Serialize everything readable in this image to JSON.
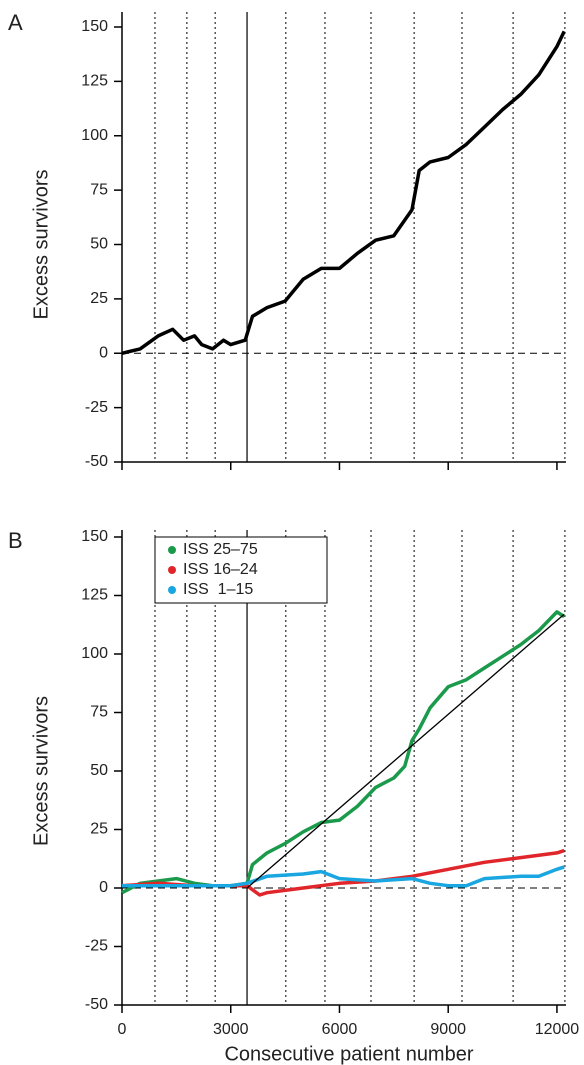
{
  "chart_data": [
    {
      "type": "line",
      "panel_label": "A",
      "ylabel": "Excess survivors",
      "xlim": [
        0,
        12250
      ],
      "ylim": [
        -50,
        150
      ],
      "xticks": [
        0,
        3000,
        6000,
        9000,
        12000
      ],
      "show_xtick_labels": false,
      "yticks": [
        150,
        125,
        100,
        75,
        50,
        25,
        0,
        -25,
        -50
      ],
      "vlines": [
        910,
        1790,
        2570,
        4520,
        5600,
        6870,
        8060,
        9380,
        10790,
        12220
      ],
      "solid_vline": 3450,
      "reference_line": 0,
      "series": [
        {
          "color": "#000000",
          "x": [
            0,
            500,
            1000,
            1400,
            1700,
            2000,
            2200,
            2500,
            2800,
            3000,
            3400,
            3600,
            4000,
            4500,
            5000,
            5500,
            6000,
            6500,
            7000,
            7500,
            8000,
            8200,
            8500,
            9000,
            9500,
            10000,
            10500,
            11000,
            11500,
            12000,
            12200
          ],
          "values": [
            0,
            2,
            8,
            11,
            6,
            8,
            4,
            2,
            6,
            4,
            6,
            17,
            21,
            24,
            34,
            39,
            39,
            46,
            52,
            54,
            66,
            84,
            88,
            90,
            96,
            104,
            112,
            119,
            128,
            141,
            148
          ]
        }
      ]
    },
    {
      "type": "line",
      "panel_label": "B",
      "ylabel": "Excess survivors",
      "xlabel": "Consecutive patient number",
      "xlim": [
        0,
        12250
      ],
      "ylim": [
        -50,
        150
      ],
      "xticks": [
        0,
        3000,
        6000,
        9000,
        12000
      ],
      "show_xtick_labels": true,
      "yticks": [
        150,
        125,
        100,
        75,
        50,
        25,
        0,
        -25,
        -50
      ],
      "vlines": [
        910,
        1790,
        2570,
        4520,
        5600,
        6870,
        8060,
        9380,
        10790,
        12220
      ],
      "solid_vline": 3450,
      "reference_line": 0,
      "fit_line": {
        "color": "#000000",
        "x": [
          3450,
          12200
        ],
        "values": [
          0,
          117
        ]
      },
      "series": [
        {
          "name": "ISS 25–75",
          "color": "#1a9a4a",
          "x": [
            0,
            500,
            1000,
            1500,
            2000,
            2500,
            3000,
            3450,
            3600,
            4000,
            4500,
            5000,
            5500,
            6000,
            6500,
            7000,
            7500,
            7800,
            8000,
            8200,
            8500,
            9000,
            9500,
            10000,
            10500,
            11000,
            11500,
            12000,
            12200
          ],
          "values": [
            -2,
            2,
            3,
            4,
            2,
            1,
            1,
            2,
            10,
            15,
            19,
            24,
            28,
            29,
            35,
            43,
            47,
            52,
            63,
            68,
            77,
            86,
            89,
            94,
            99,
            104,
            110,
            118,
            116
          ]
        },
        {
          "name": "ISS 16–24",
          "color": "#e0262a",
          "x": [
            0,
            1000,
            2000,
            3000,
            3450,
            3800,
            4000,
            5000,
            6000,
            7000,
            8000,
            9000,
            10000,
            11000,
            12000,
            12200
          ],
          "values": [
            1,
            2,
            1,
            1,
            1,
            -3,
            -2,
            0,
            2,
            3,
            5,
            8,
            11,
            13,
            15,
            16
          ]
        },
        {
          "name": "ISS  1–15",
          "color": "#1aa6e0",
          "x": [
            0,
            1000,
            2000,
            3000,
            3450,
            4000,
            5000,
            5500,
            6000,
            7000,
            8000,
            8500,
            9000,
            9500,
            10000,
            11000,
            11500,
            12000,
            12200
          ],
          "values": [
            1,
            1,
            1,
            1,
            2,
            5,
            6,
            7,
            4,
            3,
            4,
            2,
            1,
            1,
            4,
            5,
            5,
            8,
            9
          ]
        }
      ]
    }
  ]
}
